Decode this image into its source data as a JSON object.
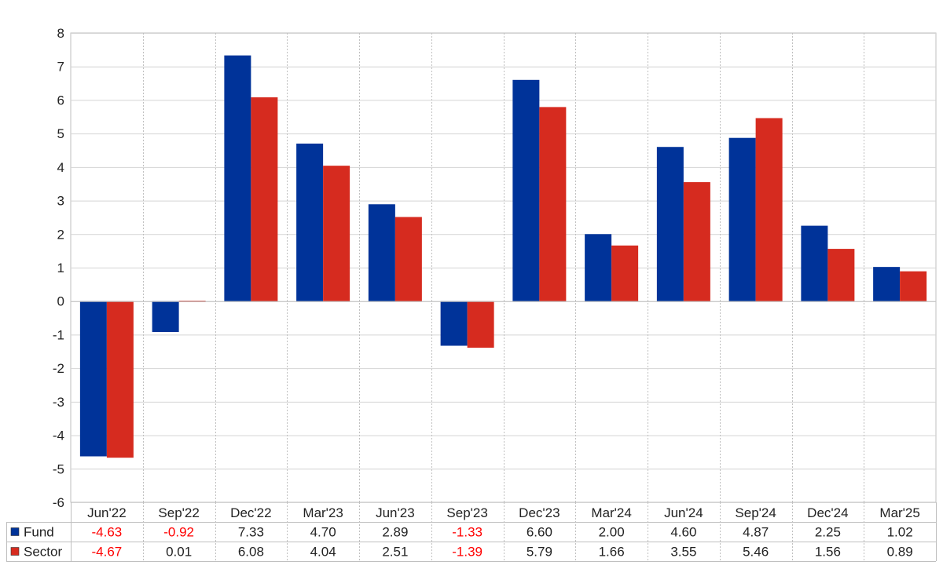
{
  "chart_data": {
    "type": "bar",
    "categories": [
      "Jun'22",
      "Sep'22",
      "Dec'22",
      "Mar'23",
      "Jun'23",
      "Sep'23",
      "Dec'23",
      "Mar'24",
      "Jun'24",
      "Sep'24",
      "Dec'24",
      "Mar'25"
    ],
    "series": [
      {
        "name": "Fund",
        "color": "#003399",
        "values": [
          -4.63,
          -0.92,
          7.33,
          4.7,
          2.89,
          -1.33,
          6.6,
          2.0,
          4.6,
          4.87,
          2.25,
          1.02
        ],
        "labels": [
          "-4.63",
          "-0.92",
          "7.33",
          "4.70",
          "2.89",
          "-1.33",
          "6.60",
          "2.00",
          "4.60",
          "4.87",
          "2.25",
          "1.02"
        ]
      },
      {
        "name": "Sector",
        "color": "#d62b1f",
        "values": [
          -4.67,
          0.01,
          6.08,
          4.04,
          2.51,
          -1.39,
          5.79,
          1.66,
          3.55,
          5.46,
          1.56,
          0.89
        ],
        "labels": [
          "-4.67",
          "0.01",
          "6.08",
          "4.04",
          "2.51",
          "-1.39",
          "5.79",
          "1.66",
          "3.55",
          "5.46",
          "1.56",
          "0.89"
        ]
      }
    ],
    "ylim": [
      -6,
      8
    ],
    "yticks": [
      "-6",
      "-5",
      "-4",
      "-3",
      "-2",
      "-1",
      "0",
      "1",
      "2",
      "3",
      "4",
      "5",
      "6",
      "7",
      "8"
    ],
    "grid": true,
    "legend_placement": "data table below chart",
    "negative_label_color": "#ff0000"
  }
}
